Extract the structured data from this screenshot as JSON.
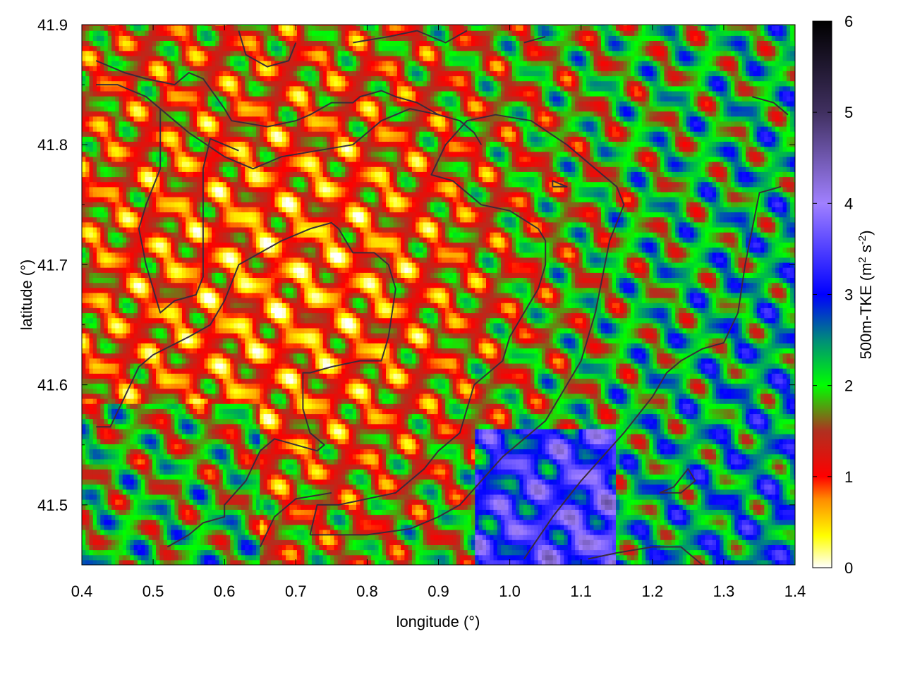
{
  "chart_data": {
    "type": "heatmap",
    "title": "",
    "xlabel": "longitude (°)",
    "ylabel": "latitude (°)",
    "xlim": [
      0.4,
      1.4
    ],
    "ylim": [
      41.45,
      41.9
    ],
    "x_ticks": [
      0.4,
      0.5,
      0.6,
      0.7,
      0.8,
      0.9,
      1.0,
      1.1,
      1.2,
      1.3,
      1.4
    ],
    "x_tick_labels": [
      "0.4",
      "0.5",
      "0.6",
      "0.7",
      "0.8",
      "0.9",
      "1.0",
      "1.1",
      "1.2",
      "1.3",
      "1.4"
    ],
    "y_ticks": [
      41.5,
      41.6,
      41.7,
      41.8,
      41.9
    ],
    "y_tick_labels": [
      "41.5",
      "41.6",
      "41.7",
      "41.8",
      "41.9"
    ],
    "colorbar": {
      "label_prefix": "500m-TKE (m",
      "label_sup1": "2",
      "label_mid": " s",
      "label_sup2": "-2",
      "label_suffix": ")",
      "range": [
        0,
        6
      ],
      "ticks": [
        0,
        1,
        2,
        3,
        4,
        5,
        6
      ],
      "tick_labels": [
        "0",
        "1",
        "2",
        "3",
        "4",
        "5",
        "6"
      ],
      "stops": [
        {
          "v": 0.0,
          "c": "#ffffff"
        },
        {
          "v": 0.35,
          "c": "#ffff00"
        },
        {
          "v": 0.75,
          "c": "#ff8c00"
        },
        {
          "v": 1.0,
          "c": "#ff0000"
        },
        {
          "v": 1.5,
          "c": "#b03020"
        },
        {
          "v": 2.0,
          "c": "#00ff00"
        },
        {
          "v": 2.5,
          "c": "#008c7a"
        },
        {
          "v": 3.0,
          "c": "#0000ff"
        },
        {
          "v": 4.0,
          "c": "#a080ff"
        },
        {
          "v": 5.0,
          "c": "#403060"
        },
        {
          "v": 6.0,
          "c": "#000000"
        }
      ]
    },
    "grid": false,
    "value_field_note": ""
  }
}
